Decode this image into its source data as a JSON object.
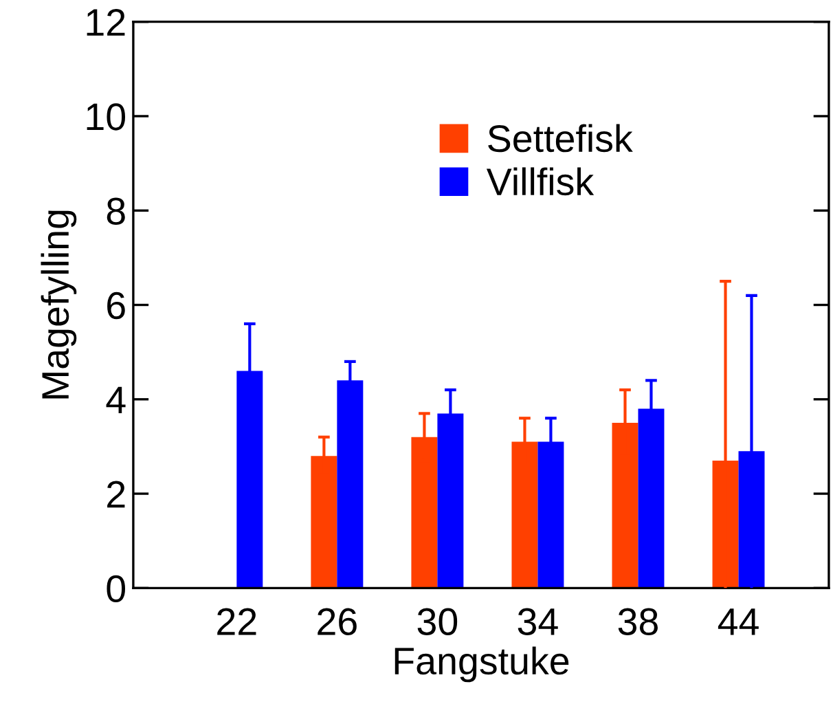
{
  "chart_data": {
    "type": "bar",
    "xlabel": "Fangstuke",
    "ylabel": "Magefylling",
    "categories": [
      "22",
      "26",
      "30",
      "34",
      "38",
      "44"
    ],
    "series": [
      {
        "name": "Settefisk",
        "color": "#ff4000",
        "values": [
          0,
          2.8,
          3.2,
          3.1,
          3.5,
          2.7
        ],
        "errors": [
          null,
          0.4,
          0.5,
          0.5,
          0.7,
          3.8
        ]
      },
      {
        "name": "Villfisk",
        "color": "#0000ff",
        "values": [
          4.6,
          4.4,
          3.7,
          3.1,
          3.8,
          2.9
        ],
        "errors": [
          1.0,
          0.4,
          0.5,
          0.5,
          0.6,
          3.3
        ]
      }
    ],
    "ylim": [
      0,
      12
    ],
    "yticks": [
      0,
      2,
      4,
      6,
      8,
      10,
      12
    ],
    "grid": false,
    "legend": "top"
  }
}
